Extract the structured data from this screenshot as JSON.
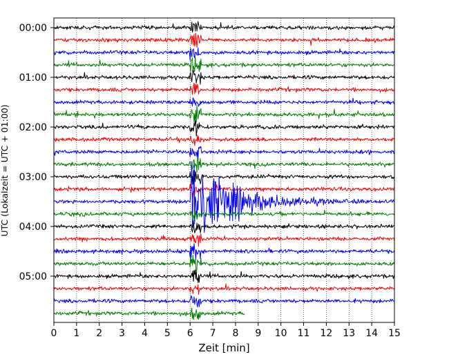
{
  "chart_data": {
    "type": "line",
    "title": "",
    "xlabel": "Zeit  [min]",
    "ylabel": "UTC (Lokalzeit = UTC + 01:00)",
    "xlim": [
      0,
      15
    ],
    "x_ticks": [
      "0",
      "1",
      "2",
      "3",
      "4",
      "5",
      "6",
      "7",
      "8",
      "9",
      "10",
      "11",
      "12",
      "13",
      "14",
      "15"
    ],
    "y_ticks": [
      {
        "label": "00:00",
        "hour": 0
      },
      {
        "label": "01:00",
        "hour": 1
      },
      {
        "label": "02:00",
        "hour": 2
      },
      {
        "label": "03:00",
        "hour": 3
      },
      {
        "label": "04:00",
        "hour": 4
      },
      {
        "label": "05:00",
        "hour": 5
      }
    ],
    "trace_interval_minutes": 15,
    "trace_count": 24,
    "trace_colors": [
      "#000000",
      "#ff0000",
      "#0000ff",
      "#008000"
    ],
    "last_trace_end_minute": 8.4,
    "grid": "vertical-dotted",
    "event": {
      "onset_minute": 6.0,
      "first_strong_trace": "03:30",
      "coda_trace": "03:45",
      "clipped_until_minute": 6.5
    }
  }
}
